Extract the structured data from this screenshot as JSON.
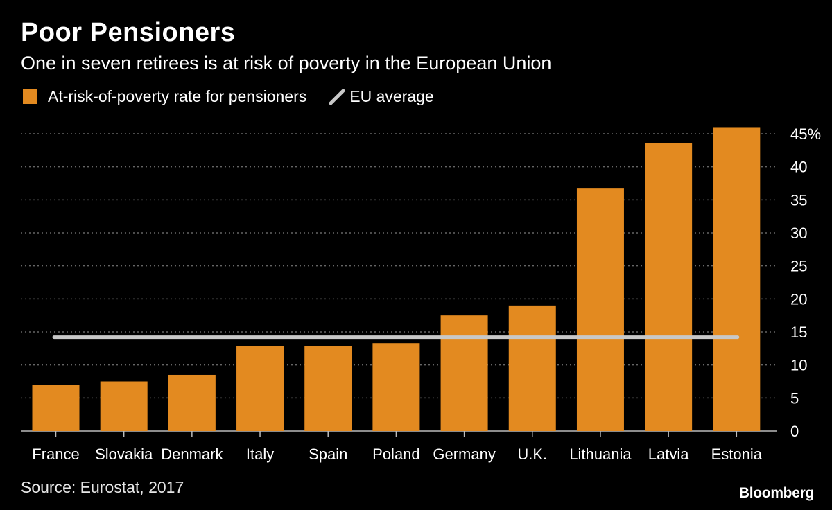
{
  "title": "Poor Pensioners",
  "subtitle": "One in seven retirees is at risk of poverty in the European Union",
  "legend": {
    "bar_label": "At-risk-of-poverty rate for pensioners",
    "line_label": "EU average"
  },
  "source": "Source: Eurostat, 2017",
  "brand": "Bloomberg",
  "colors": {
    "bar": "#E38A20",
    "average_line": "#C8C8C8",
    "grid": "#666666",
    "background": "#000000"
  },
  "chart_data": {
    "type": "bar",
    "title": "Poor Pensioners",
    "subtitle": "One in seven retirees is at risk of poverty in the European Union",
    "categories": [
      "France",
      "Slovakia",
      "Denmark",
      "Italy",
      "Spain",
      "Poland",
      "Germany",
      "U.K.",
      "Lithuania",
      "Latvia",
      "Estonia"
    ],
    "series": [
      {
        "name": "At-risk-of-poverty rate for pensioners",
        "values": [
          7.0,
          7.5,
          8.5,
          12.8,
          12.8,
          13.3,
          17.5,
          19.0,
          36.7,
          43.6,
          46.0
        ]
      }
    ],
    "reference_line": {
      "name": "EU average",
      "value": 14.2
    },
    "ylim": [
      0,
      45
    ],
    "yticks": [
      0,
      5,
      10,
      15,
      20,
      25,
      30,
      35,
      40,
      45
    ],
    "ytick_labels": [
      "0",
      "5",
      "10",
      "15",
      "20",
      "25",
      "30",
      "35",
      "40",
      "45%"
    ],
    "y_axis_side": "right",
    "grid": true,
    "xlabel": "",
    "ylabel": ""
  }
}
